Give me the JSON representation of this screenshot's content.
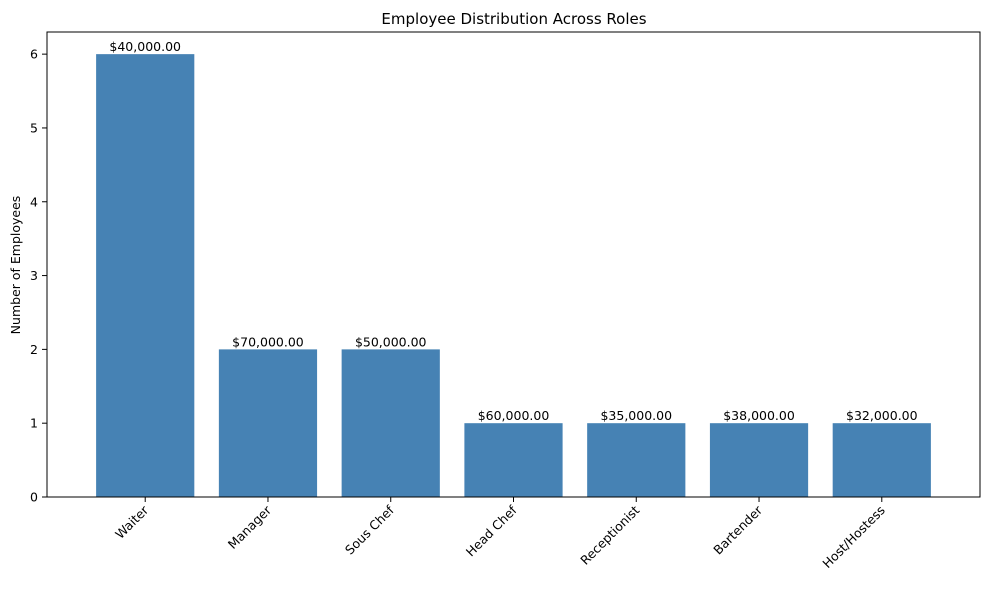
{
  "chart_data": {
    "type": "bar",
    "title": "Employee Distribution Across Roles",
    "xlabel": "",
    "ylabel": "Number of Employees",
    "categories": [
      "Waiter",
      "Manager",
      "Sous Chef",
      "Head Chef",
      "Receptionist",
      "Bartender",
      "Host/Hostess"
    ],
    "values": [
      6,
      2,
      2,
      1,
      1,
      1,
      1
    ],
    "bar_labels": [
      "$40,000.00",
      "$70,000.00",
      "$50,000.00",
      "$60,000.00",
      "$35,000.00",
      "$38,000.00",
      "$32,000.00"
    ],
    "ylim": [
      0,
      6.3
    ],
    "yticks": [
      0,
      1,
      2,
      3,
      4,
      5,
      6
    ],
    "bar_color": "#4682b4",
    "grid": false,
    "legend": "none"
  }
}
